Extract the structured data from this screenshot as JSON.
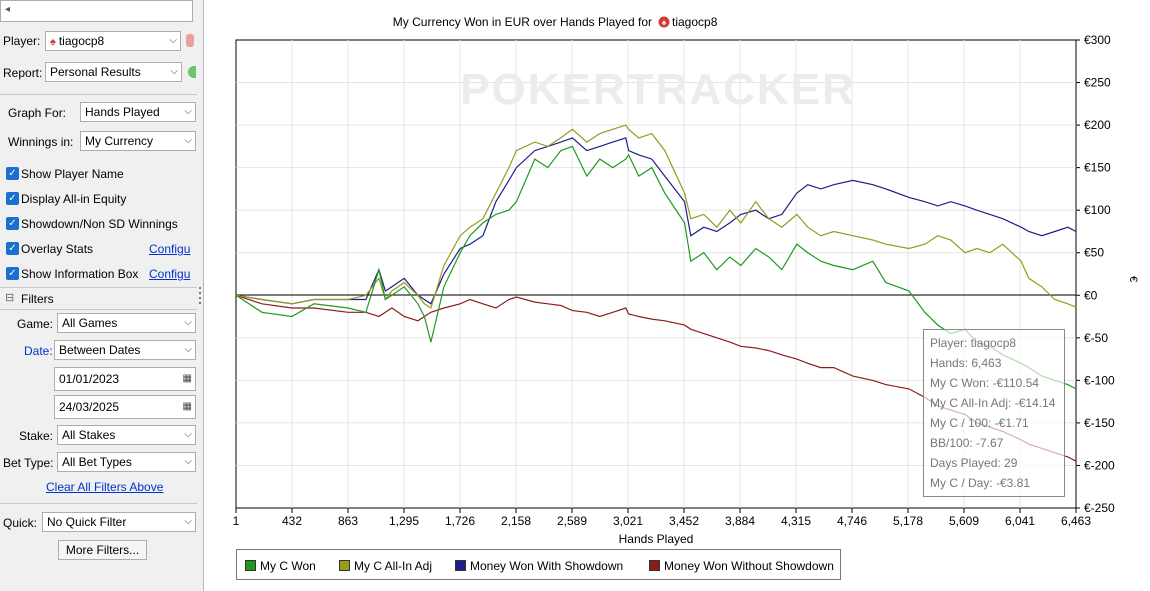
{
  "sidebar": {
    "player_label": "Player:",
    "player_value": "tiagocp8",
    "report_label": "Report:",
    "report_value": "Personal Results",
    "graph_for_label": "Graph For:",
    "graph_for_value": "Hands Played",
    "winnings_in_label": "Winnings in:",
    "winnings_in_value": "My Currency",
    "checkboxes": [
      {
        "label": "Show Player Name",
        "checked": true
      },
      {
        "label": "Display All-in Equity",
        "checked": true
      },
      {
        "label": "Showdown/Non SD Winnings",
        "checked": true
      },
      {
        "label": "Overlay Stats",
        "checked": true,
        "link": "Configu"
      },
      {
        "label": "Show Information Box",
        "checked": true,
        "link": "Configu"
      }
    ],
    "filters_title": "Filters",
    "game_label": "Game:",
    "game_value": "All Games",
    "date_label": "Date:",
    "date_value": "Between Dates",
    "date_from": "01/01/2023",
    "date_to": "24/03/2025",
    "stake_label": "Stake:",
    "stake_value": "All Stakes",
    "bet_type_label": "Bet Type:",
    "bet_type_value": "All Bet Types",
    "clear_filters": "Clear All Filters Above",
    "quick_label": "Quick:",
    "quick_value": "No Quick Filter",
    "more_filters": "More Filters..."
  },
  "watermark": "POKERTRACKER",
  "infobox": {
    "player": "Player: tiagocp8",
    "hands": "Hands: 6,463",
    "won": "My C Won: -€110.54",
    "allin": "My C All-In Adj: -€14.14",
    "per100": "My C / 100: -€1.71",
    "bb100": "BB/100: -7.67",
    "days": "Days Played: 29",
    "perday": "My C / Day: -€3.81"
  },
  "chart_data": {
    "type": "line",
    "title": "My Currency Won in EUR over Hands Played for",
    "title_player": "tiagocp8",
    "xlabel": "Hands Played",
    "ylabel": "€",
    "xlim": [
      1,
      6463
    ],
    "ylim": [
      -250,
      300
    ],
    "x_ticks": [
      "1",
      "432",
      "863",
      "1,295",
      "1,726",
      "2,158",
      "2,589",
      "3,021",
      "3,452",
      "3,884",
      "4,315",
      "4,746",
      "5,178",
      "5,609",
      "6,041",
      "6,463"
    ],
    "y_ticks": [
      "€300",
      "€250",
      "€200",
      "€150",
      "€100",
      "€50",
      "€0",
      "€-50",
      "€-100",
      "€-150",
      "€-200",
      "€-250"
    ],
    "grid": true,
    "legend_position": "bottom",
    "x": [
      1,
      200,
      431,
      600,
      863,
      1000,
      1100,
      1150,
      1200,
      1295,
      1400,
      1450,
      1500,
      1600,
      1726,
      1800,
      1900,
      2000,
      2100,
      2158,
      2300,
      2400,
      2500,
      2589,
      2700,
      2800,
      2900,
      3000,
      3021,
      3100,
      3200,
      3300,
      3452,
      3500,
      3600,
      3700,
      3800,
      3884,
      4000,
      4100,
      4200,
      4315,
      4400,
      4500,
      4600,
      4746,
      4900,
      5000,
      5178,
      5300,
      5400,
      5500,
      5609,
      5700,
      5800,
      5900,
      6041,
      6100,
      6200,
      6300,
      6400,
      6463
    ],
    "series": [
      {
        "name": "My C Won",
        "color": "#1e9a1e",
        "values": [
          0,
          -20,
          -25,
          -10,
          -15,
          -20,
          30,
          -5,
          0,
          10,
          -10,
          -25,
          -55,
          10,
          50,
          70,
          85,
          95,
          100,
          110,
          160,
          150,
          170,
          175,
          140,
          160,
          150,
          160,
          165,
          140,
          150,
          120,
          85,
          40,
          50,
          30,
          45,
          35,
          55,
          45,
          30,
          60,
          50,
          40,
          35,
          30,
          40,
          15,
          5,
          -20,
          -35,
          -45,
          -40,
          -55,
          -60,
          -70,
          -80,
          -85,
          -95,
          -100,
          -105,
          -110
        ]
      },
      {
        "name": "My C All-In Adj",
        "color": "#9a9a1e",
        "values": [
          0,
          -5,
          -10,
          -5,
          -5,
          0,
          20,
          -5,
          5,
          15,
          0,
          -10,
          -15,
          35,
          70,
          80,
          90,
          120,
          150,
          170,
          180,
          175,
          185,
          195,
          180,
          190,
          195,
          200,
          195,
          185,
          190,
          170,
          120,
          90,
          95,
          80,
          100,
          85,
          110,
          90,
          80,
          95,
          80,
          70,
          75,
          70,
          65,
          60,
          55,
          60,
          70,
          65,
          50,
          55,
          50,
          60,
          40,
          20,
          10,
          -5,
          -10,
          -14
        ]
      },
      {
        "name": "Money Won With Showdown",
        "color": "#1e1e8a",
        "values": [
          0,
          -5,
          -10,
          -5,
          -5,
          -5,
          30,
          5,
          10,
          20,
          0,
          -5,
          -10,
          25,
          55,
          60,
          70,
          110,
          135,
          150,
          170,
          175,
          180,
          185,
          170,
          175,
          180,
          185,
          170,
          165,
          160,
          140,
          110,
          70,
          80,
          75,
          85,
          95,
          100,
          90,
          95,
          120,
          130,
          125,
          130,
          135,
          130,
          125,
          115,
          110,
          105,
          110,
          105,
          100,
          95,
          90,
          80,
          75,
          70,
          75,
          80,
          75
        ]
      },
      {
        "name": "Money Won Without Showdown",
        "color": "#8a1e1e",
        "values": [
          0,
          -10,
          -15,
          -15,
          -20,
          -20,
          -25,
          -20,
          -15,
          -25,
          -30,
          -25,
          -20,
          -15,
          -10,
          -5,
          -10,
          -15,
          -5,
          -2,
          -8,
          -10,
          -12,
          -18,
          -20,
          -25,
          -20,
          -15,
          -22,
          -25,
          -28,
          -30,
          -35,
          -40,
          -45,
          -50,
          -55,
          -60,
          -62,
          -65,
          -70,
          -75,
          -80,
          -85,
          -85,
          -95,
          -100,
          -105,
          -110,
          -120,
          -130,
          -135,
          -140,
          -150,
          -155,
          -160,
          -170,
          -175,
          -180,
          -185,
          -190,
          -195
        ]
      }
    ]
  }
}
